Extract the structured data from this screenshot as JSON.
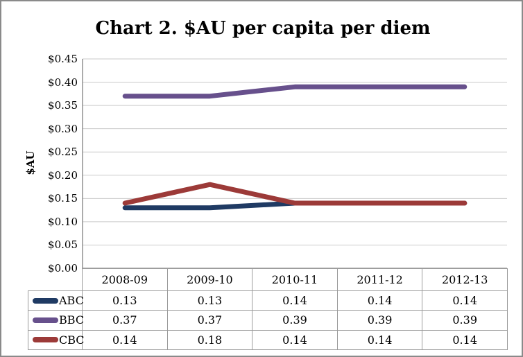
{
  "chart_data": {
    "type": "line",
    "title": "Chart 2. $AU per capita per diem",
    "categories": [
      "2008-09",
      "2009-10",
      "2010-11",
      "2011-12",
      "2012-13"
    ],
    "series": [
      {
        "name": "ABC",
        "color": "#1F3A63",
        "values": [
          0.13,
          0.13,
          0.14,
          0.14,
          0.14
        ]
      },
      {
        "name": "BBC",
        "color": "#67508C",
        "values": [
          0.37,
          0.37,
          0.39,
          0.39,
          0.39
        ]
      },
      {
        "name": "CBC",
        "color": "#9C3A38",
        "values": [
          0.14,
          0.18,
          0.14,
          0.14,
          0.14
        ]
      }
    ],
    "xlabel": "",
    "ylabel": "$AU",
    "ylim": [
      0,
      0.45
    ],
    "ytick_step": 0.05,
    "y_tick_labels": [
      "$0.45",
      "$0.40",
      "$0.35",
      "$0.30",
      "$0.25",
      "$0.20",
      "$0.15",
      "$0.10",
      "$0.05",
      "$0.00"
    ],
    "grid": true,
    "legend_position": "data-table"
  },
  "table": {
    "columns": [
      "2008-09",
      "2009-10",
      "2010-11",
      "2011-12",
      "2012-13"
    ],
    "rows": [
      {
        "label": "ABC",
        "values": [
          "0.13",
          "0.13",
          "0.14",
          "0.14",
          "0.14"
        ]
      },
      {
        "label": "BBC",
        "values": [
          "0.37",
          "0.37",
          "0.39",
          "0.39",
          "0.39"
        ]
      },
      {
        "label": "CBC",
        "values": [
          "0.14",
          "0.18",
          "0.14",
          "0.14",
          "0.14"
        ]
      }
    ]
  },
  "colors": {
    "series_abc": "#1F3A63",
    "series_bbc": "#67508C",
    "series_cbc": "#9C3A38",
    "gridline": "#C9C9C9",
    "axis": "#7F7F7F",
    "table_border": "#9A9A9A"
  }
}
